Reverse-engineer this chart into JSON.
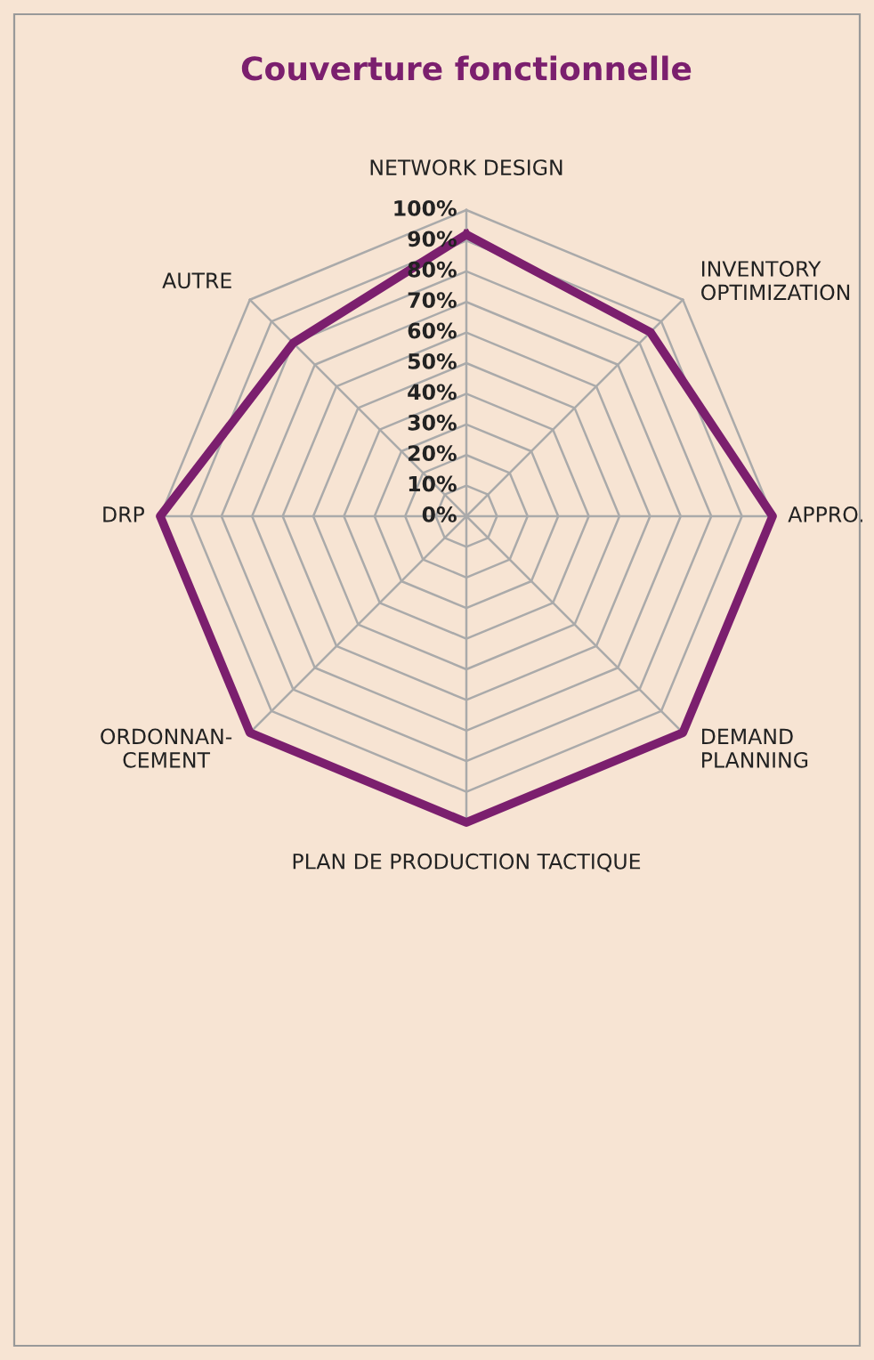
{
  "chart_data": {
    "type": "radar",
    "title": "Couverture fonctionnelle",
    "categories": [
      "NETWORK DESIGN",
      "INVENTORY\nOPTIMIZATION",
      "APPRO.",
      "DEMAND\nPLANNING",
      "PLAN DE PRODUCTION TACTIQUE",
      "ORDONNAN-\nCEMENT",
      "DRP",
      "AUTRE"
    ],
    "series": [
      {
        "color": "#7b1f6e",
        "values": [
          92,
          85,
          100,
          100,
          100,
          100,
          100,
          80
        ]
      }
    ],
    "ylim": [
      0,
      100
    ],
    "yticks": [
      {
        "value": 0,
        "label": "0%"
      },
      {
        "value": 10,
        "label": "10%"
      },
      {
        "value": 20,
        "label": "20%"
      },
      {
        "value": 30,
        "label": "30%"
      },
      {
        "value": 40,
        "label": "40%"
      },
      {
        "value": 50,
        "label": "50%"
      },
      {
        "value": 60,
        "label": "60%"
      },
      {
        "value": 70,
        "label": "70%"
      },
      {
        "value": 80,
        "label": "80%"
      },
      {
        "value": 90,
        "label": "90%"
      },
      {
        "value": 100,
        "label": "100%"
      }
    ],
    "grid": true
  }
}
